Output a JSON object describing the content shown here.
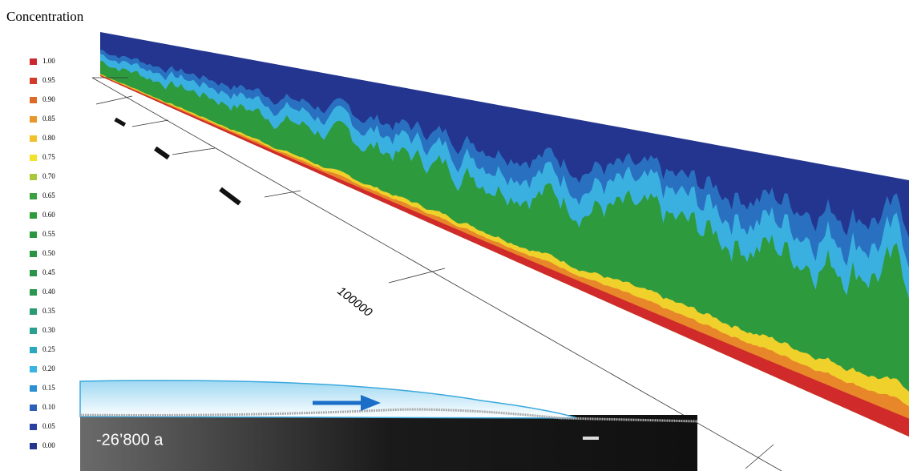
{
  "title": "Concentration",
  "legend": {
    "items": [
      {
        "label": "1.00",
        "color": "#c8282e"
      },
      {
        "label": "0.95",
        "color": "#d23a2a"
      },
      {
        "label": "0.90",
        "color": "#dc6a2a"
      },
      {
        "label": "0.85",
        "color": "#e8962a"
      },
      {
        "label": "0.80",
        "color": "#f0c22a"
      },
      {
        "label": "0.75",
        "color": "#f2e22c"
      },
      {
        "label": "0.70",
        "color": "#a8c83a"
      },
      {
        "label": "0.65",
        "color": "#3aa040"
      },
      {
        "label": "0.60",
        "color": "#2e9a3c"
      },
      {
        "label": "0.55",
        "color": "#2a9640"
      },
      {
        "label": "0.50",
        "color": "#2a9444"
      },
      {
        "label": "0.45",
        "color": "#2a9448"
      },
      {
        "label": "0.40",
        "color": "#2a9650"
      },
      {
        "label": "0.35",
        "color": "#2a9a70"
      },
      {
        "label": "0.30",
        "color": "#2aa090"
      },
      {
        "label": "0.25",
        "color": "#2aa8c0"
      },
      {
        "label": "0.20",
        "color": "#3ab4e0"
      },
      {
        "label": "0.15",
        "color": "#2a90d0"
      },
      {
        "label": "0.10",
        "color": "#2a60b8"
      },
      {
        "label": "0.05",
        "color": "#2a40a0"
      },
      {
        "label": "0.00",
        "color": "#23358f"
      }
    ]
  },
  "axis": {
    "tick_label": "100000"
  },
  "inset": {
    "label": "-26’800 a"
  }
}
